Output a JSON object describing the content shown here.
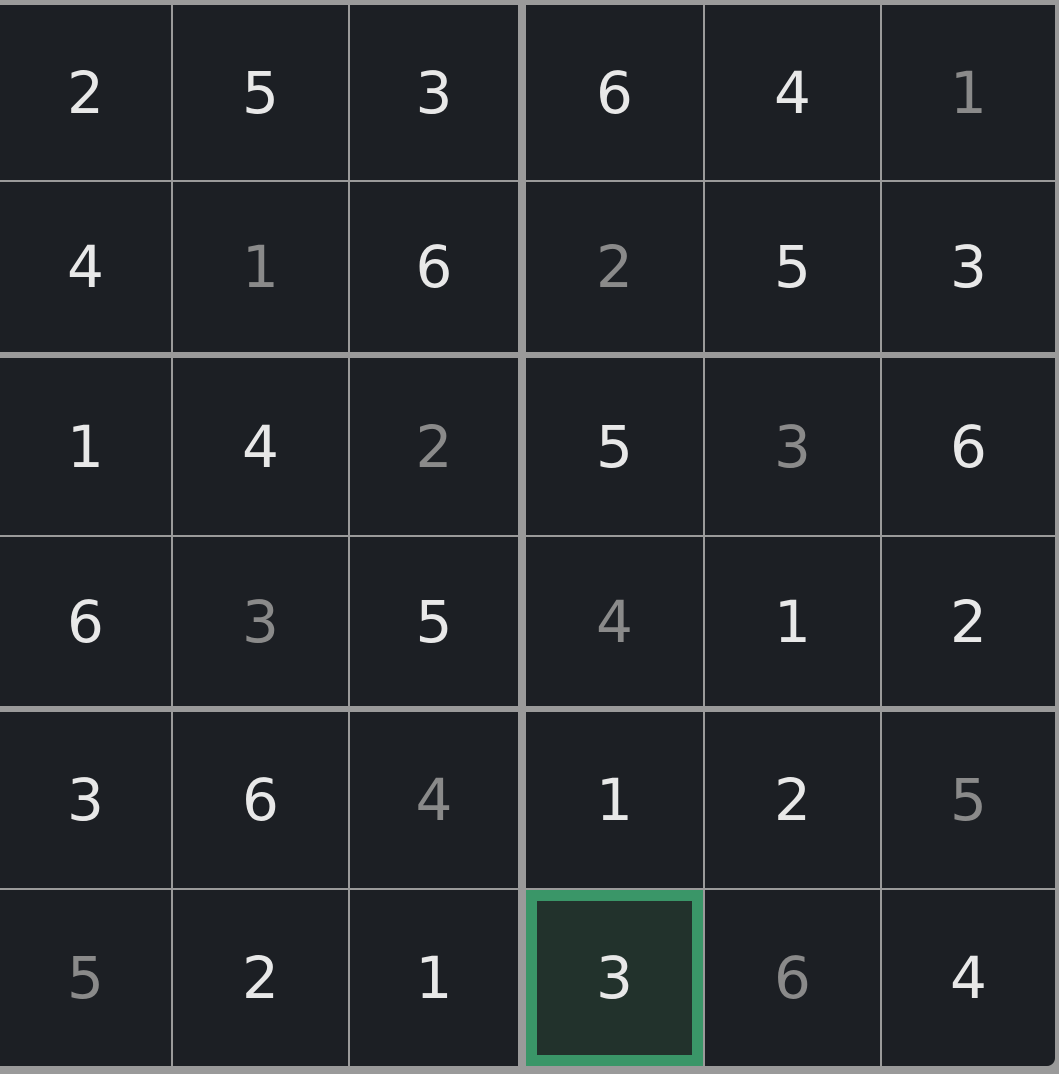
{
  "puzzle": {
    "size": 6,
    "box_rows": 2,
    "box_cols": 3,
    "grid": [
      [
        2,
        5,
        3,
        6,
        4,
        1
      ],
      [
        4,
        1,
        6,
        2,
        5,
        3
      ],
      [
        1,
        4,
        2,
        5,
        3,
        6
      ],
      [
        6,
        3,
        5,
        4,
        1,
        2
      ],
      [
        3,
        6,
        4,
        1,
        2,
        5
      ],
      [
        5,
        2,
        1,
        3,
        6,
        4
      ]
    ],
    "faded_cells": [
      [
        0,
        5
      ],
      [
        1,
        1
      ],
      [
        1,
        3
      ],
      [
        2,
        2
      ],
      [
        2,
        4
      ],
      [
        3,
        1
      ],
      [
        3,
        3
      ],
      [
        4,
        2
      ],
      [
        4,
        5
      ],
      [
        5,
        0
      ],
      [
        5,
        4
      ]
    ],
    "selected_cell": [
      5,
      3
    ]
  },
  "colors": {
    "cell_bg": "#1c1f24",
    "grid_line": "#9a9a9a",
    "digit": "#e8e8e8",
    "faded_digit": "#8a8a8a",
    "selected_border": "#3a9668",
    "selected_bg": "#22322c"
  }
}
